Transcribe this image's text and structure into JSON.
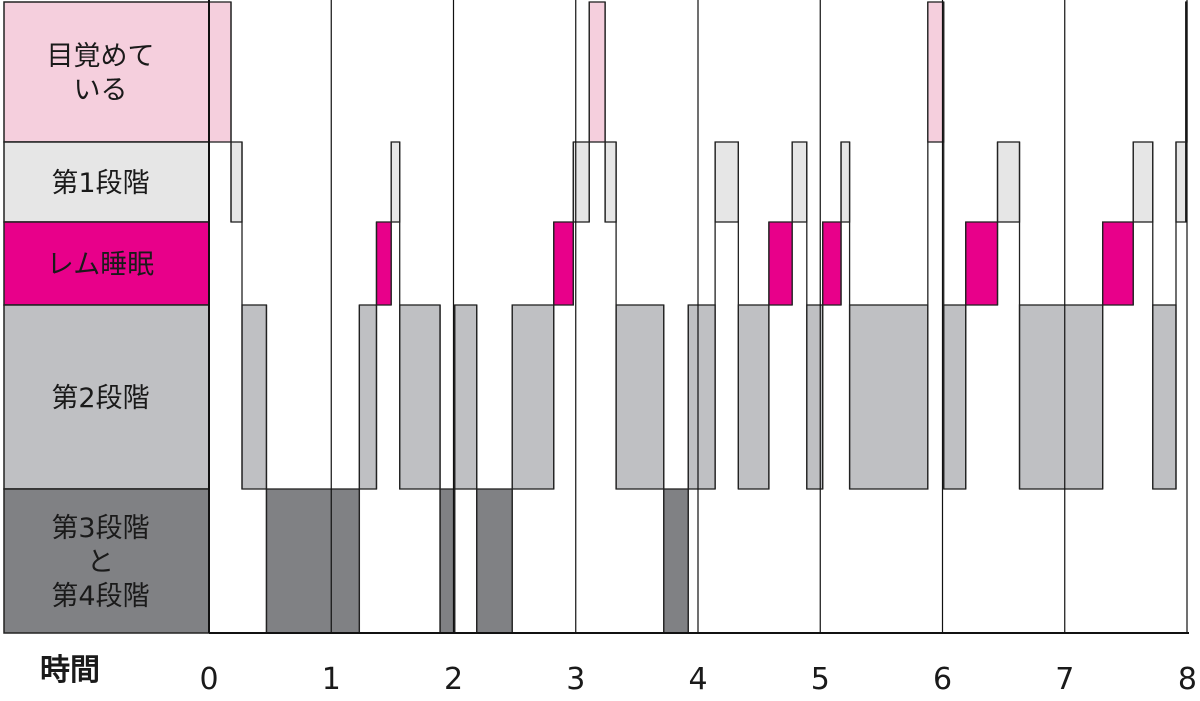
{
  "chart_data": {
    "type": "bar",
    "subtype": "hypnogram",
    "xlabel": "時間",
    "x_ticks": [
      "0",
      "1",
      "2",
      "3",
      "4",
      "5",
      "6",
      "7",
      "8"
    ],
    "xlim": [
      0,
      8
    ],
    "grid": "vertical lines at each hour",
    "stages": [
      {
        "id": "awake",
        "label_lines": [
          "目覚めて",
          "いる"
        ],
        "color": "#f5cfdd"
      },
      {
        "id": "n1",
        "label_lines": [
          "第1段階"
        ],
        "color": "#e6e6e6"
      },
      {
        "id": "rem",
        "label_lines": [
          "レム睡眠"
        ],
        "color": "#e8008a"
      },
      {
        "id": "n2",
        "label_lines": [
          "第2段階"
        ],
        "color": "#bfc0c3"
      },
      {
        "id": "n34",
        "label_lines": [
          "第3段階",
          "と",
          "第4段階"
        ],
        "color": "#808184"
      }
    ],
    "segments": [
      {
        "stage": "awake",
        "start": 0.0,
        "end": 0.18
      },
      {
        "stage": "n1",
        "start": 0.18,
        "end": 0.27
      },
      {
        "stage": "n2",
        "start": 0.27,
        "end": 0.47
      },
      {
        "stage": "n34",
        "start": 0.47,
        "end": 1.23
      },
      {
        "stage": "n2",
        "start": 1.23,
        "end": 1.37
      },
      {
        "stage": "rem",
        "start": 1.37,
        "end": 1.49
      },
      {
        "stage": "n1",
        "start": 1.49,
        "end": 1.56
      },
      {
        "stage": "n2",
        "start": 1.56,
        "end": 1.89
      },
      {
        "stage": "n34",
        "start": 1.89,
        "end": 2.01
      },
      {
        "stage": "n2",
        "start": 2.01,
        "end": 2.19
      },
      {
        "stage": "n34",
        "start": 2.19,
        "end": 2.48
      },
      {
        "stage": "n2",
        "start": 2.48,
        "end": 2.82
      },
      {
        "stage": "rem",
        "start": 2.82,
        "end": 2.98
      },
      {
        "stage": "n1",
        "start": 2.98,
        "end": 3.11
      },
      {
        "stage": "awake",
        "start": 3.11,
        "end": 3.24
      },
      {
        "stage": "n1",
        "start": 3.24,
        "end": 3.33
      },
      {
        "stage": "n2",
        "start": 3.33,
        "end": 3.72
      },
      {
        "stage": "n34",
        "start": 3.72,
        "end": 3.92
      },
      {
        "stage": "n2",
        "start": 3.92,
        "end": 4.14
      },
      {
        "stage": "n1",
        "start": 4.14,
        "end": 4.33
      },
      {
        "stage": "n2",
        "start": 4.33,
        "end": 4.58
      },
      {
        "stage": "rem",
        "start": 4.58,
        "end": 4.77
      },
      {
        "stage": "n1",
        "start": 4.77,
        "end": 4.89
      },
      {
        "stage": "n2",
        "start": 4.89,
        "end": 5.02
      },
      {
        "stage": "rem",
        "start": 5.02,
        "end": 5.17
      },
      {
        "stage": "n1",
        "start": 5.17,
        "end": 5.24
      },
      {
        "stage": "n2",
        "start": 5.24,
        "end": 5.88
      },
      {
        "stage": "awake",
        "start": 5.88,
        "end": 6.01
      },
      {
        "stage": "n2",
        "start": 6.01,
        "end": 6.19
      },
      {
        "stage": "rem",
        "start": 6.19,
        "end": 6.45
      },
      {
        "stage": "n1",
        "start": 6.45,
        "end": 6.63
      },
      {
        "stage": "n2",
        "start": 6.63,
        "end": 7.31
      },
      {
        "stage": "rem",
        "start": 7.31,
        "end": 7.56
      },
      {
        "stage": "n1",
        "start": 7.56,
        "end": 7.72
      },
      {
        "stage": "n2",
        "start": 7.72,
        "end": 7.91
      },
      {
        "stage": "n1",
        "start": 7.91,
        "end": 7.99
      },
      {
        "stage": "awake",
        "start": 7.99,
        "end": 8.0
      }
    ]
  }
}
